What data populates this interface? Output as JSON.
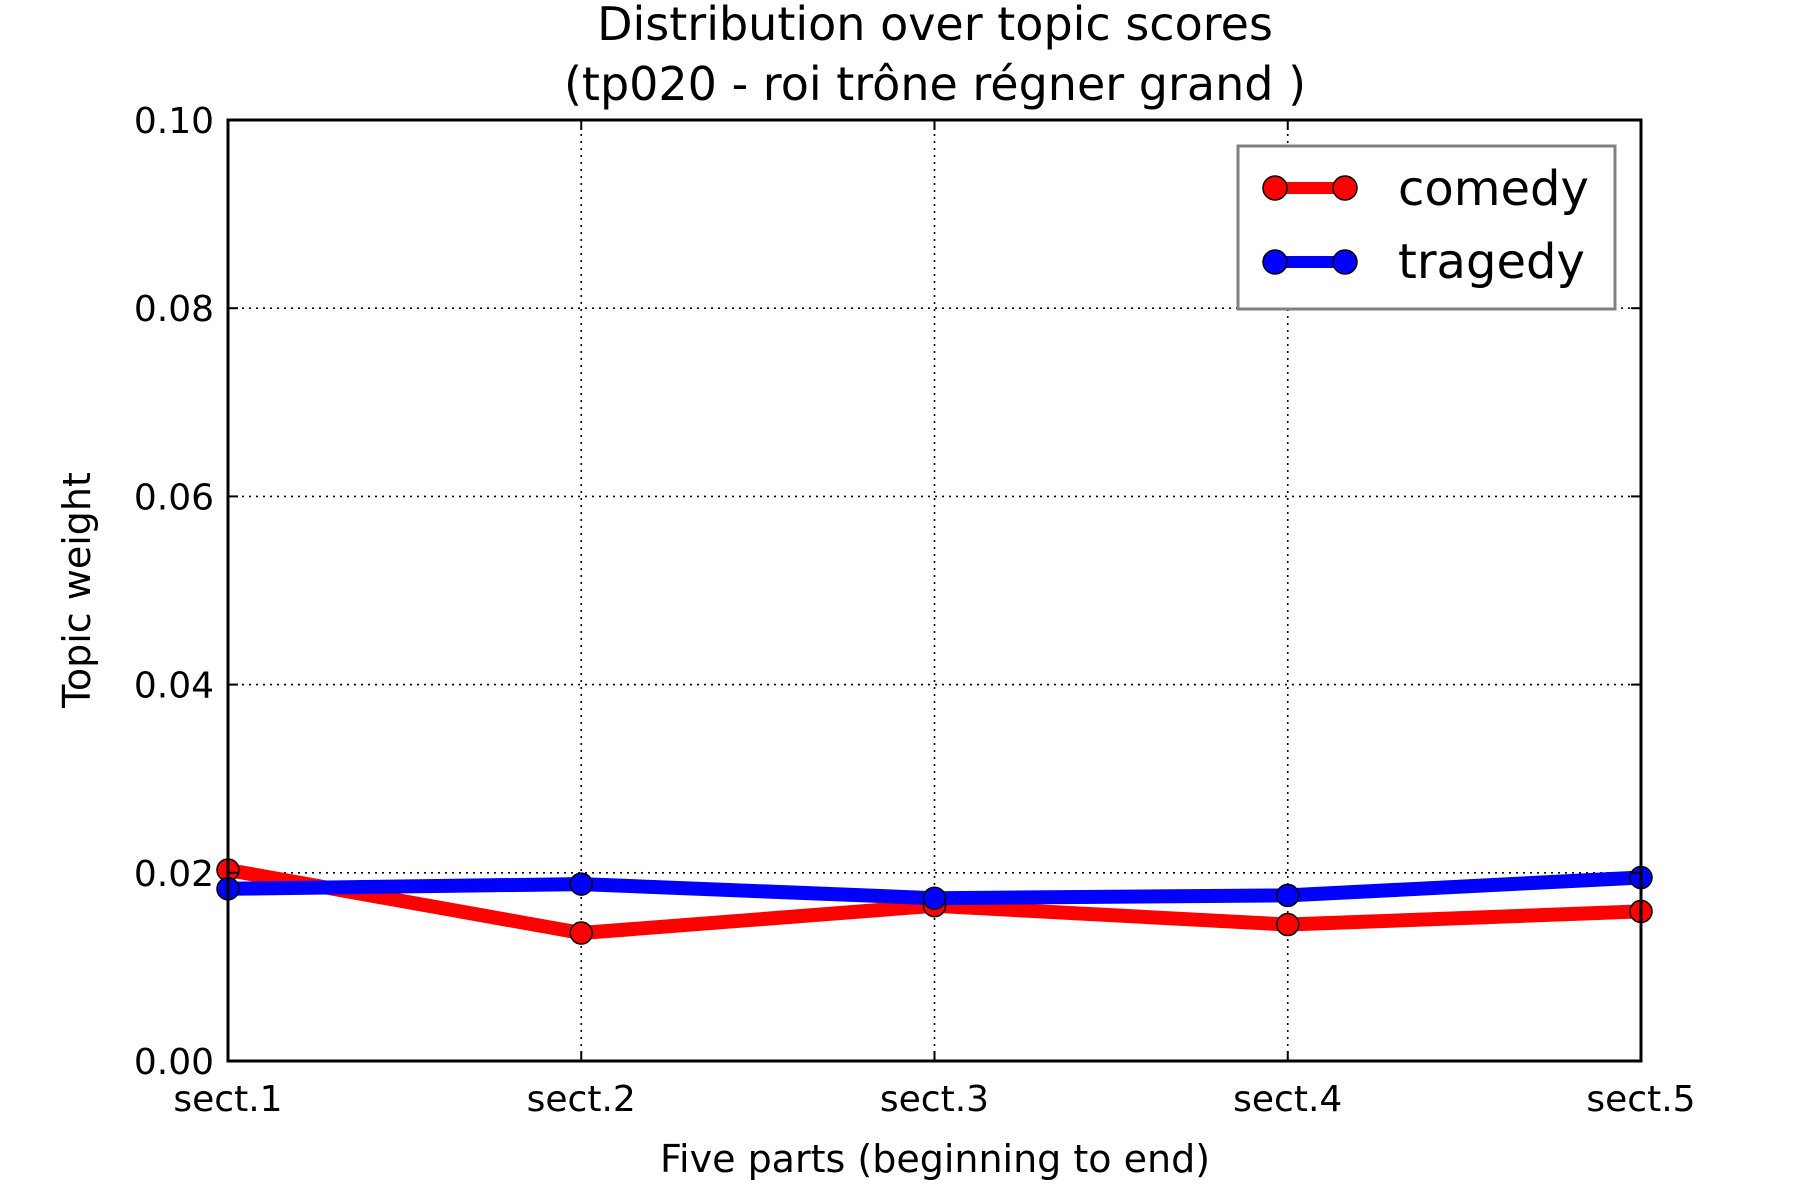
{
  "chart_data": {
    "type": "line",
    "title": [
      "Distribution over topic scores",
      "(tp020 - roi trône régner grand )"
    ],
    "xlabel": "Five parts (beginning to end)",
    "ylabel": "Topic weight",
    "categories": [
      "sect.1",
      "sect.2",
      "sect.3",
      "sect.4",
      "sect.5"
    ],
    "ylim": [
      0,
      0.1
    ],
    "yticks": [
      0,
      0.02,
      0.04,
      0.06,
      0.08,
      0.1
    ],
    "ytick_labels": [
      "0.00",
      "0.02",
      "0.04",
      "0.06",
      "0.08",
      "0.10"
    ],
    "grid": true,
    "legend_position": "top-right",
    "series": [
      {
        "name": "comedy",
        "color": "#ff0000",
        "values": [
          0.0203,
          0.0136,
          0.0165,
          0.0145,
          0.0159
        ]
      },
      {
        "name": "tragedy",
        "color": "#0000ff",
        "values": [
          0.0183,
          0.0188,
          0.0173,
          0.0176,
          0.0195
        ]
      }
    ]
  }
}
